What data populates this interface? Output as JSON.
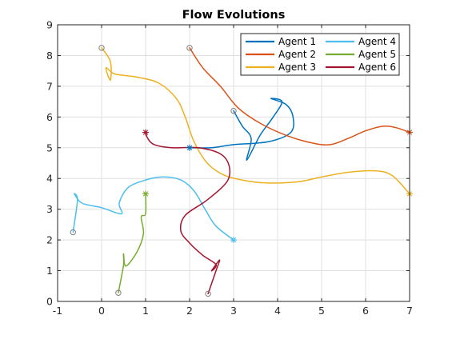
{
  "chart_data": {
    "type": "line",
    "title": "Flow Evolutions",
    "xlabel": "",
    "ylabel": "",
    "xlim": [
      -1,
      7
    ],
    "ylim": [
      0,
      9
    ],
    "xticks": [
      -1,
      0,
      1,
      2,
      3,
      4,
      5,
      6,
      7
    ],
    "yticks": [
      0,
      1,
      2,
      3,
      4,
      5,
      6,
      7,
      8,
      9
    ],
    "grid": true,
    "legend": {
      "placement": "top-right",
      "columns": 2
    },
    "series": [
      {
        "name": "Agent 1",
        "color": "#0072BD",
        "start": [
          3.0,
          6.2
        ],
        "end": [
          2.0,
          5.0
        ],
        "points": [
          [
            3.0,
            6.2
          ],
          [
            3.2,
            5.7
          ],
          [
            3.4,
            5.3
          ],
          [
            3.3,
            4.6
          ],
          [
            3.6,
            5.4
          ],
          [
            3.9,
            6.0
          ],
          [
            4.1,
            6.5
          ],
          [
            3.85,
            6.6
          ],
          [
            4.2,
            6.4
          ],
          [
            4.35,
            6.0
          ],
          [
            4.3,
            5.5
          ],
          [
            3.8,
            5.2
          ],
          [
            3.0,
            5.1
          ],
          [
            2.5,
            5.0
          ],
          [
            2.0,
            5.0
          ]
        ]
      },
      {
        "name": "Agent 2",
        "color": "#D95319",
        "start": [
          2.0,
          8.25
        ],
        "end": [
          7.0,
          5.5
        ],
        "points": [
          [
            2.0,
            8.25
          ],
          [
            2.3,
            7.6
          ],
          [
            2.7,
            7.0
          ],
          [
            3.1,
            6.3
          ],
          [
            3.6,
            5.8
          ],
          [
            4.2,
            5.4
          ],
          [
            4.8,
            5.15
          ],
          [
            5.2,
            5.1
          ],
          [
            5.6,
            5.3
          ],
          [
            6.0,
            5.55
          ],
          [
            6.4,
            5.7
          ],
          [
            6.7,
            5.65
          ],
          [
            7.0,
            5.5
          ]
        ]
      },
      {
        "name": "Agent 3",
        "color": "#EDB120",
        "start": [
          0.0,
          8.25
        ],
        "end": [
          7.0,
          3.5
        ],
        "points": [
          [
            0.0,
            8.25
          ],
          [
            0.2,
            7.8
          ],
          [
            0.2,
            7.2
          ],
          [
            0.1,
            7.6
          ],
          [
            0.3,
            7.4
          ],
          [
            0.8,
            7.3
          ],
          [
            1.3,
            7.1
          ],
          [
            1.7,
            6.6
          ],
          [
            1.9,
            6.0
          ],
          [
            2.1,
            5.2
          ],
          [
            2.4,
            4.5
          ],
          [
            2.8,
            4.1
          ],
          [
            3.4,
            3.9
          ],
          [
            3.9,
            3.85
          ],
          [
            4.5,
            3.9
          ],
          [
            5.0,
            4.05
          ],
          [
            5.6,
            4.2
          ],
          [
            6.2,
            4.25
          ],
          [
            6.6,
            4.1
          ],
          [
            7.0,
            3.5
          ]
        ]
      },
      {
        "name": "Agent 4",
        "color": "#4DBEEE",
        "start": [
          -0.65,
          2.25
        ],
        "end": [
          3.0,
          2.0
        ],
        "points": [
          [
            -0.65,
            2.25
          ],
          [
            -0.55,
            3.3
          ],
          [
            -0.62,
            3.5
          ],
          [
            -0.45,
            3.2
          ],
          [
            0.0,
            3.05
          ],
          [
            0.45,
            2.85
          ],
          [
            0.4,
            3.2
          ],
          [
            0.6,
            3.7
          ],
          [
            1.0,
            3.95
          ],
          [
            1.4,
            4.05
          ],
          [
            1.8,
            3.95
          ],
          [
            2.1,
            3.6
          ],
          [
            2.35,
            3.0
          ],
          [
            2.6,
            2.45
          ],
          [
            3.0,
            2.0
          ]
        ]
      },
      {
        "name": "Agent 5",
        "color": "#77AC30",
        "start": [
          0.38,
          0.28
        ],
        "end": [
          1.0,
          3.5
        ],
        "points": [
          [
            0.38,
            0.28
          ],
          [
            0.45,
            0.8
          ],
          [
            0.5,
            1.2
          ],
          [
            0.5,
            1.55
          ],
          [
            0.55,
            1.15
          ],
          [
            0.8,
            1.6
          ],
          [
            0.95,
            2.2
          ],
          [
            0.9,
            2.75
          ],
          [
            1.0,
            2.85
          ],
          [
            1.0,
            3.5
          ]
        ]
      },
      {
        "name": "Agent 6",
        "color": "#A2142F",
        "start": [
          2.42,
          0.25
        ],
        "end": [
          1.0,
          5.5
        ],
        "points": [
          [
            2.42,
            0.25
          ],
          [
            2.6,
            1.0
          ],
          [
            2.68,
            1.35
          ],
          [
            2.5,
            1.0
          ],
          [
            2.6,
            1.2
          ],
          [
            2.3,
            1.5
          ],
          [
            2.0,
            1.9
          ],
          [
            1.8,
            2.3
          ],
          [
            1.9,
            2.8
          ],
          [
            2.4,
            3.3
          ],
          [
            2.85,
            3.9
          ],
          [
            2.9,
            4.4
          ],
          [
            2.7,
            4.8
          ],
          [
            2.2,
            5.0
          ],
          [
            1.6,
            5.0
          ],
          [
            1.2,
            5.1
          ],
          [
            1.05,
            5.3
          ],
          [
            1.0,
            5.5
          ]
        ]
      }
    ]
  }
}
